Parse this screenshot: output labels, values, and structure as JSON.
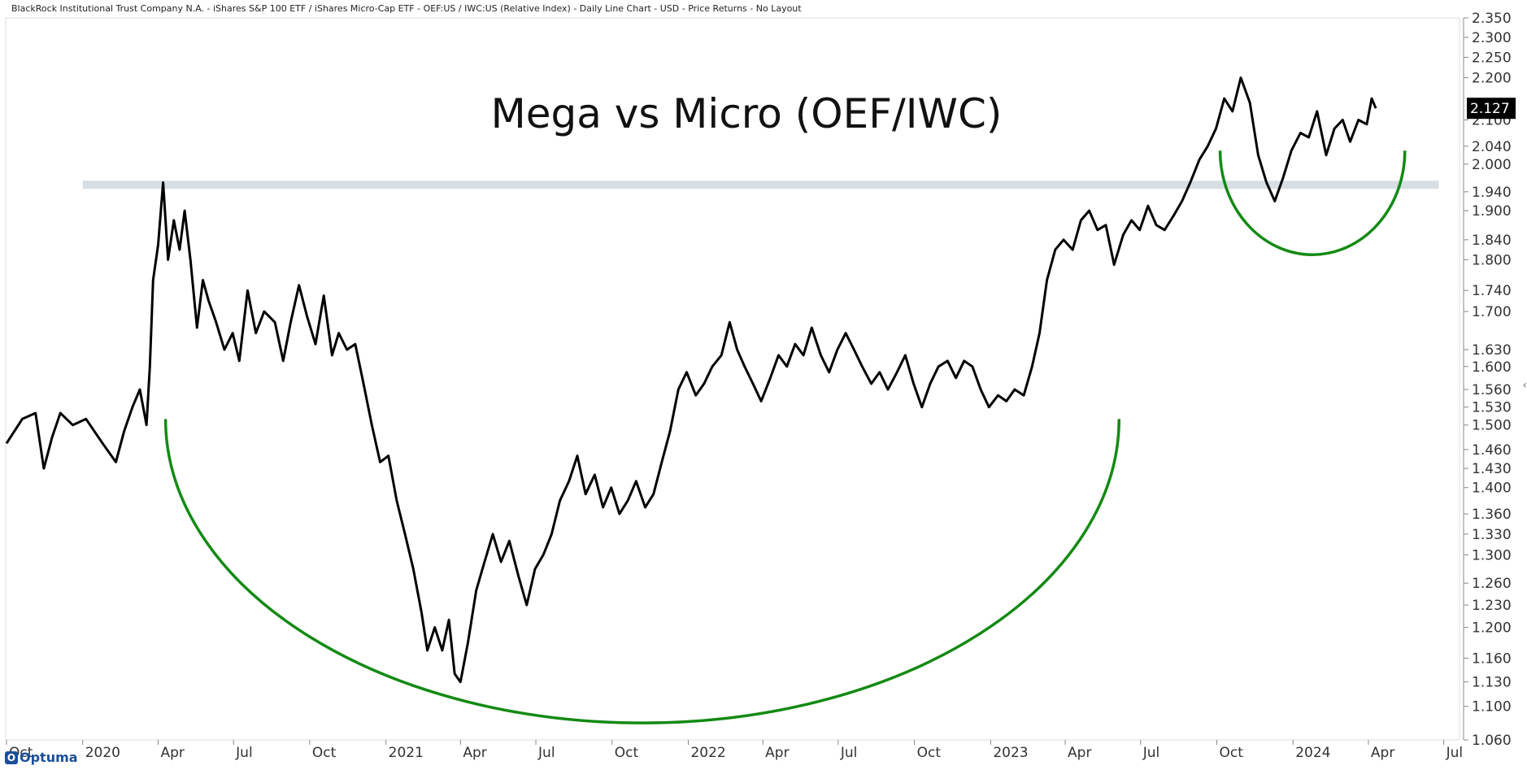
{
  "header": {
    "caption": "BlackRock Institutional Trust Company N.A. - iShares S&P 100 ETF / iShares Micro-Cap ETF - OEF:US / IWC:US (Relative Index) - Daily Line Chart - USD - Price Returns - No Layout"
  },
  "logo": {
    "text": "Optuma",
    "mark": "O"
  },
  "collapse_icon": "‹",
  "colors": {
    "line": "#000000",
    "arc": "#138a13",
    "band": "#d7dee4",
    "last_value_bg": "#000000",
    "last_value_fg": "#ffffff"
  },
  "chart_data": {
    "type": "line",
    "title": "Mega vs Micro (OEF/IWC)",
    "x_axis": {
      "type": "date",
      "range": [
        "2019-09-30",
        "2024-07-20"
      ],
      "tick_labels": [
        {
          "date": "2019-10-01",
          "label": "Oct"
        },
        {
          "date": "2020-01-01",
          "label": "2020"
        },
        {
          "date": "2020-04-01",
          "label": "Apr"
        },
        {
          "date": "2020-07-01",
          "label": "Jul"
        },
        {
          "date": "2020-10-01",
          "label": "Oct"
        },
        {
          "date": "2021-01-01",
          "label": "2021"
        },
        {
          "date": "2021-04-01",
          "label": "Apr"
        },
        {
          "date": "2021-07-01",
          "label": "Jul"
        },
        {
          "date": "2021-10-01",
          "label": "Oct"
        },
        {
          "date": "2022-01-01",
          "label": "2022"
        },
        {
          "date": "2022-04-01",
          "label": "Apr"
        },
        {
          "date": "2022-07-01",
          "label": "Jul"
        },
        {
          "date": "2022-10-01",
          "label": "Oct"
        },
        {
          "date": "2023-01-01",
          "label": "2023"
        },
        {
          "date": "2023-04-01",
          "label": "Apr"
        },
        {
          "date": "2023-07-01",
          "label": "Jul"
        },
        {
          "date": "2023-10-01",
          "label": "Oct"
        },
        {
          "date": "2024-01-01",
          "label": "2024"
        },
        {
          "date": "2024-04-01",
          "label": "Apr"
        },
        {
          "date": "2024-07-01",
          "label": "Jul"
        }
      ]
    },
    "y_axis": {
      "scale": "log",
      "range": [
        1.06,
        2.35
      ],
      "tick_labels": [
        "2.350",
        "2.300",
        "2.250",
        "2.200",
        "2.100",
        "2.040",
        "2.000",
        "1.940",
        "1.900",
        "1.840",
        "1.800",
        "1.740",
        "1.700",
        "1.630",
        "1.600",
        "1.560",
        "1.530",
        "1.500",
        "1.460",
        "1.430",
        "1.400",
        "1.360",
        "1.330",
        "1.300",
        "1.260",
        "1.230",
        "1.200",
        "1.160",
        "1.130",
        "1.100",
        "1.060"
      ]
    },
    "last_value": "2.127",
    "series": [
      {
        "points": [
          [
            "2019-10-01",
            1.47
          ],
          [
            "2019-10-20",
            1.51
          ],
          [
            "2019-11-05",
            1.52
          ],
          [
            "2019-11-15",
            1.43
          ],
          [
            "2019-11-25",
            1.48
          ],
          [
            "2019-12-05",
            1.52
          ],
          [
            "2019-12-20",
            1.5
          ],
          [
            "2020-01-05",
            1.51
          ],
          [
            "2020-01-25",
            1.47
          ],
          [
            "2020-02-10",
            1.44
          ],
          [
            "2020-02-20",
            1.49
          ],
          [
            "2020-03-01",
            1.53
          ],
          [
            "2020-03-10",
            1.56
          ],
          [
            "2020-03-18",
            1.5
          ],
          [
            "2020-03-22",
            1.6
          ],
          [
            "2020-03-26",
            1.76
          ],
          [
            "2020-04-01",
            1.83
          ],
          [
            "2020-04-07",
            1.96
          ],
          [
            "2020-04-13",
            1.8
          ],
          [
            "2020-04-20",
            1.88
          ],
          [
            "2020-04-27",
            1.82
          ],
          [
            "2020-05-03",
            1.9
          ],
          [
            "2020-05-10",
            1.8
          ],
          [
            "2020-05-18",
            1.67
          ],
          [
            "2020-05-25",
            1.76
          ],
          [
            "2020-06-01",
            1.72
          ],
          [
            "2020-06-10",
            1.68
          ],
          [
            "2020-06-20",
            1.63
          ],
          [
            "2020-06-30",
            1.66
          ],
          [
            "2020-07-08",
            1.61
          ],
          [
            "2020-07-18",
            1.74
          ],
          [
            "2020-07-28",
            1.66
          ],
          [
            "2020-08-07",
            1.7
          ],
          [
            "2020-08-20",
            1.68
          ],
          [
            "2020-08-30",
            1.61
          ],
          [
            "2020-09-08",
            1.68
          ],
          [
            "2020-09-18",
            1.75
          ],
          [
            "2020-09-28",
            1.69
          ],
          [
            "2020-10-08",
            1.64
          ],
          [
            "2020-10-18",
            1.73
          ],
          [
            "2020-10-28",
            1.62
          ],
          [
            "2020-11-05",
            1.66
          ],
          [
            "2020-11-15",
            1.63
          ],
          [
            "2020-11-25",
            1.64
          ],
          [
            "2020-12-05",
            1.57
          ],
          [
            "2020-12-15",
            1.5
          ],
          [
            "2020-12-25",
            1.44
          ],
          [
            "2021-01-04",
            1.45
          ],
          [
            "2021-01-14",
            1.38
          ],
          [
            "2021-01-24",
            1.33
          ],
          [
            "2021-02-03",
            1.28
          ],
          [
            "2021-02-13",
            1.22
          ],
          [
            "2021-02-20",
            1.17
          ],
          [
            "2021-03-01",
            1.2
          ],
          [
            "2021-03-10",
            1.17
          ],
          [
            "2021-03-18",
            1.21
          ],
          [
            "2021-03-25",
            1.14
          ],
          [
            "2021-04-01",
            1.13
          ],
          [
            "2021-04-10",
            1.18
          ],
          [
            "2021-04-20",
            1.25
          ],
          [
            "2021-04-30",
            1.29
          ],
          [
            "2021-05-10",
            1.33
          ],
          [
            "2021-05-20",
            1.29
          ],
          [
            "2021-05-30",
            1.32
          ],
          [
            "2021-06-10",
            1.27
          ],
          [
            "2021-06-20",
            1.23
          ],
          [
            "2021-06-30",
            1.28
          ],
          [
            "2021-07-10",
            1.3
          ],
          [
            "2021-07-20",
            1.33
          ],
          [
            "2021-07-30",
            1.38
          ],
          [
            "2021-08-10",
            1.41
          ],
          [
            "2021-08-20",
            1.45
          ],
          [
            "2021-08-30",
            1.39
          ],
          [
            "2021-09-10",
            1.42
          ],
          [
            "2021-09-20",
            1.37
          ],
          [
            "2021-09-30",
            1.4
          ],
          [
            "2021-10-10",
            1.36
          ],
          [
            "2021-10-20",
            1.38
          ],
          [
            "2021-10-30",
            1.41
          ],
          [
            "2021-11-10",
            1.37
          ],
          [
            "2021-11-20",
            1.39
          ],
          [
            "2021-11-30",
            1.44
          ],
          [
            "2021-12-10",
            1.49
          ],
          [
            "2021-12-20",
            1.56
          ],
          [
            "2021-12-30",
            1.59
          ],
          [
            "2022-01-10",
            1.55
          ],
          [
            "2022-01-20",
            1.57
          ],
          [
            "2022-01-30",
            1.6
          ],
          [
            "2022-02-10",
            1.62
          ],
          [
            "2022-02-20",
            1.68
          ],
          [
            "2022-03-01",
            1.63
          ],
          [
            "2022-03-10",
            1.6
          ],
          [
            "2022-03-20",
            1.57
          ],
          [
            "2022-03-30",
            1.54
          ],
          [
            "2022-04-10",
            1.58
          ],
          [
            "2022-04-20",
            1.62
          ],
          [
            "2022-04-30",
            1.6
          ],
          [
            "2022-05-10",
            1.64
          ],
          [
            "2022-05-20",
            1.62
          ],
          [
            "2022-05-30",
            1.67
          ],
          [
            "2022-06-10",
            1.62
          ],
          [
            "2022-06-20",
            1.59
          ],
          [
            "2022-06-30",
            1.63
          ],
          [
            "2022-07-10",
            1.66
          ],
          [
            "2022-07-20",
            1.63
          ],
          [
            "2022-07-30",
            1.6
          ],
          [
            "2022-08-10",
            1.57
          ],
          [
            "2022-08-20",
            1.59
          ],
          [
            "2022-08-30",
            1.56
          ],
          [
            "2022-09-10",
            1.59
          ],
          [
            "2022-09-20",
            1.62
          ],
          [
            "2022-09-30",
            1.57
          ],
          [
            "2022-10-10",
            1.53
          ],
          [
            "2022-10-20",
            1.57
          ],
          [
            "2022-10-30",
            1.6
          ],
          [
            "2022-11-10",
            1.61
          ],
          [
            "2022-11-20",
            1.58
          ],
          [
            "2022-11-30",
            1.61
          ],
          [
            "2022-12-10",
            1.6
          ],
          [
            "2022-12-20",
            1.56
          ],
          [
            "2022-12-30",
            1.53
          ],
          [
            "2023-01-10",
            1.55
          ],
          [
            "2023-01-20",
            1.54
          ],
          [
            "2023-01-30",
            1.56
          ],
          [
            "2023-02-10",
            1.55
          ],
          [
            "2023-02-20",
            1.6
          ],
          [
            "2023-03-01",
            1.66
          ],
          [
            "2023-03-10",
            1.76
          ],
          [
            "2023-03-20",
            1.82
          ],
          [
            "2023-03-30",
            1.84
          ],
          [
            "2023-04-10",
            1.82
          ],
          [
            "2023-04-20",
            1.88
          ],
          [
            "2023-04-30",
            1.9
          ],
          [
            "2023-05-10",
            1.86
          ],
          [
            "2023-05-20",
            1.87
          ],
          [
            "2023-05-30",
            1.79
          ],
          [
            "2023-06-10",
            1.85
          ],
          [
            "2023-06-20",
            1.88
          ],
          [
            "2023-06-30",
            1.86
          ],
          [
            "2023-07-10",
            1.91
          ],
          [
            "2023-07-20",
            1.87
          ],
          [
            "2023-07-30",
            1.86
          ],
          [
            "2023-08-10",
            1.89
          ],
          [
            "2023-08-20",
            1.92
          ],
          [
            "2023-08-30",
            1.96
          ],
          [
            "2023-09-10",
            2.01
          ],
          [
            "2023-09-20",
            2.04
          ],
          [
            "2023-09-30",
            2.08
          ],
          [
            "2023-10-10",
            2.15
          ],
          [
            "2023-10-20",
            2.12
          ],
          [
            "2023-10-30",
            2.2
          ],
          [
            "2023-11-10",
            2.14
          ],
          [
            "2023-11-20",
            2.02
          ],
          [
            "2023-11-30",
            1.96
          ],
          [
            "2023-12-10",
            1.92
          ],
          [
            "2023-12-20",
            1.97
          ],
          [
            "2023-12-30",
            2.03
          ],
          [
            "2024-01-10",
            2.07
          ],
          [
            "2024-01-20",
            2.06
          ],
          [
            "2024-01-30",
            2.12
          ],
          [
            "2024-02-10",
            2.02
          ],
          [
            "2024-02-20",
            2.08
          ],
          [
            "2024-03-01",
            2.1
          ],
          [
            "2024-03-10",
            2.05
          ],
          [
            "2024-03-20",
            2.1
          ],
          [
            "2024-03-30",
            2.09
          ],
          [
            "2024-04-05",
            2.15
          ],
          [
            "2024-04-10",
            2.127
          ]
        ]
      }
    ],
    "annotations": [
      {
        "type": "resistance_band",
        "value": 1.955,
        "x_start": "2020-01-01",
        "x_end": "2024-06-25"
      },
      {
        "type": "arc",
        "x_start": "2020-04-10",
        "x_end": "2023-06-05",
        "top": 1.51,
        "bottom": 1.08
      },
      {
        "type": "arc",
        "x_start": "2023-10-05",
        "x_end": "2024-05-15",
        "top": 2.03,
        "bottom": 1.81
      }
    ]
  }
}
